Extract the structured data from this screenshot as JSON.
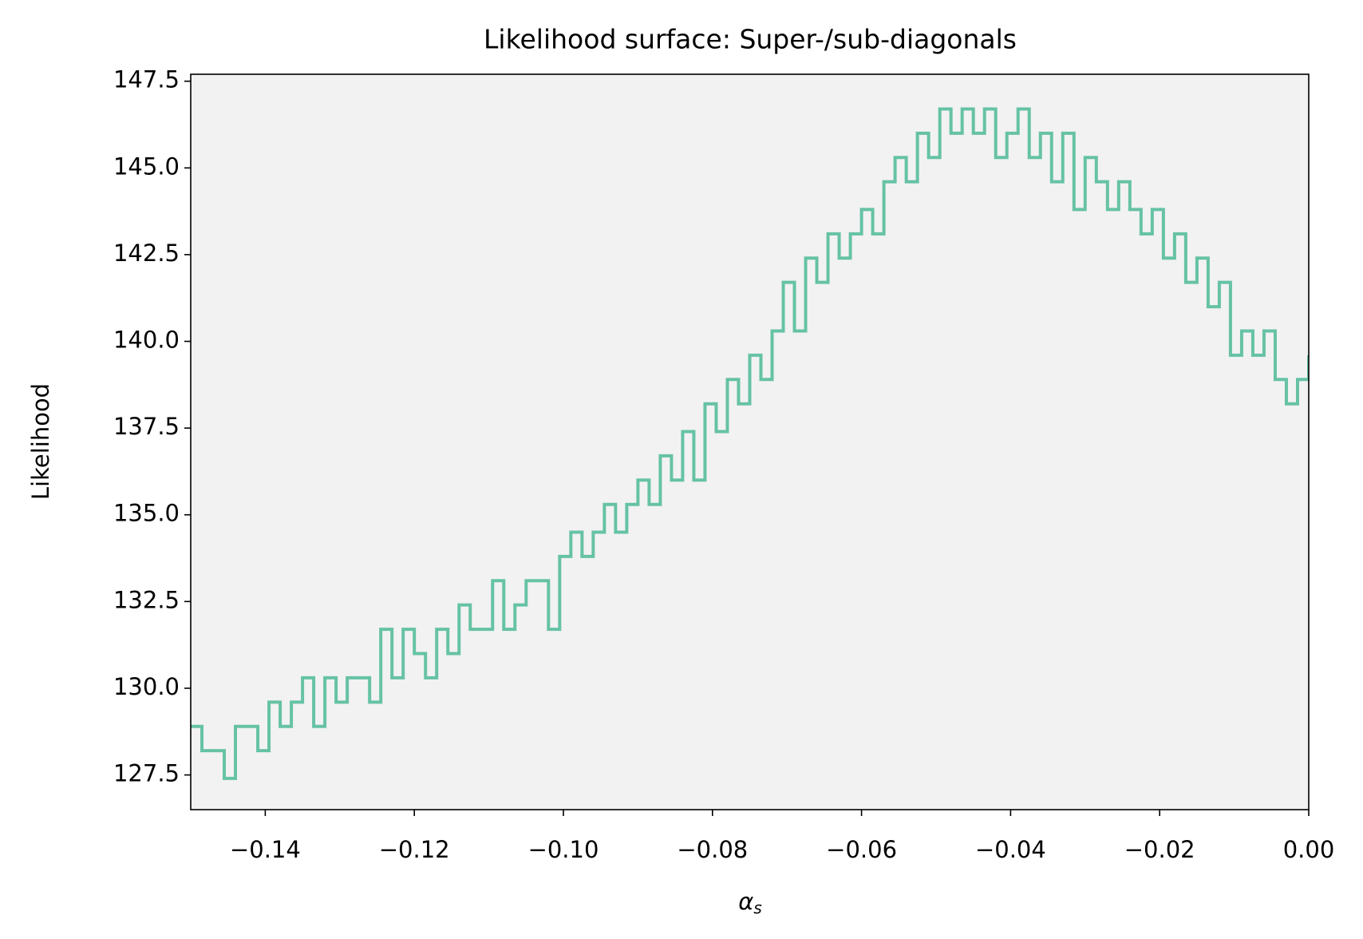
{
  "chart_data": {
    "type": "line",
    "drawstyle": "steps-post",
    "title": "Likelihood surface: Super-/sub-diagonals",
    "x_label": "α",
    "x_label_subscript": "s",
    "y_label": "Likelihood",
    "background": "#f2f2f2",
    "xlim": [
      -0.15,
      0.0
    ],
    "xticks": [
      {
        "value": -0.14,
        "label": "−0.14"
      },
      {
        "value": -0.12,
        "label": "−0.12"
      },
      {
        "value": -0.1,
        "label": "−0.10"
      },
      {
        "value": -0.08,
        "label": "−0.08"
      },
      {
        "value": -0.06,
        "label": "−0.06"
      },
      {
        "value": -0.04,
        "label": "−0.04"
      },
      {
        "value": -0.02,
        "label": "−0.02"
      },
      {
        "value": 0,
        "label": "0.00"
      }
    ],
    "ylim": [
      126.5,
      147.7
    ],
    "yticks": [
      127.5,
      {
        "value": 130,
        "label": "130.0"
      },
      132.5,
      {
        "value": 135,
        "label": "135.0"
      },
      137.5,
      {
        "value": 140,
        "label": "140.0"
      },
      142.5,
      {
        "value": 145,
        "label": "145.0"
      },
      147.5
    ],
    "x": [
      -0.15,
      -0.1485,
      -0.147,
      -0.1455,
      -0.144,
      -0.1425,
      -0.141,
      -0.1395,
      -0.138,
      -0.1365,
      -0.135,
      -0.1335,
      -0.132,
      -0.1305,
      -0.129,
      -0.1275,
      -0.126,
      -0.1245,
      -0.123,
      -0.1215,
      -0.12,
      -0.1185,
      -0.117,
      -0.1155,
      -0.114,
      -0.1125,
      -0.111,
      -0.1095,
      -0.108,
      -0.1065,
      -0.105,
      -0.1035,
      -0.102,
      -0.1005,
      -0.099,
      -0.0975,
      -0.096,
      -0.0945,
      -0.093,
      -0.0915,
      -0.09,
      -0.0885,
      -0.087,
      -0.0855,
      -0.084,
      -0.0825,
      -0.081,
      -0.0795,
      -0.078,
      -0.0765,
      -0.075,
      -0.0735,
      -0.072,
      -0.0705,
      -0.069,
      -0.0675,
      -0.066,
      -0.0645,
      -0.063,
      -0.0615,
      -0.06,
      -0.0585,
      -0.057,
      -0.0555,
      -0.054,
      -0.0525,
      -0.051,
      -0.0495,
      -0.048,
      -0.0465,
      -0.045,
      -0.0435,
      -0.042,
      -0.0405,
      -0.039,
      -0.0375,
      -0.036,
      -0.0345,
      -0.033,
      -0.0315,
      -0.03,
      -0.0285,
      -0.027,
      -0.0255,
      -0.024,
      -0.0225,
      -0.021,
      -0.0195,
      -0.018,
      -0.0165,
      -0.015,
      -0.0135,
      -0.012,
      -0.0105,
      -0.009,
      -0.0075,
      -0.006,
      -0.0045,
      -0.003,
      -0.0015,
      0.0
    ],
    "series": [
      {
        "color": "#66c2a5",
        "values": [
          128.9,
          128.2,
          128.2,
          127.4,
          128.9,
          128.9,
          128.2,
          129.6,
          128.9,
          129.6,
          130.3,
          128.9,
          130.3,
          129.6,
          130.3,
          130.3,
          129.6,
          131.7,
          130.3,
          131.7,
          131.0,
          130.3,
          131.7,
          131.0,
          132.4,
          131.7,
          131.7,
          133.1,
          131.7,
          132.4,
          133.1,
          133.1,
          131.7,
          133.8,
          134.5,
          133.8,
          134.5,
          135.3,
          134.5,
          135.3,
          136.0,
          135.3,
          136.7,
          136.0,
          137.4,
          136.0,
          138.2,
          137.4,
          138.9,
          138.2,
          139.6,
          138.9,
          140.3,
          141.7,
          140.3,
          142.4,
          141.7,
          143.1,
          142.4,
          143.1,
          143.8,
          143.1,
          144.6,
          145.3,
          144.6,
          146.0,
          145.3,
          146.7,
          146.0,
          146.7,
          146.0,
          146.7,
          145.3,
          146.0,
          146.7,
          145.3,
          146.0,
          144.6,
          146.0,
          143.8,
          145.3,
          144.6,
          143.8,
          144.6,
          143.8,
          143.1,
          143.8,
          142.4,
          143.1,
          141.7,
          142.4,
          141.0,
          141.7,
          139.6,
          140.3,
          139.6,
          140.3,
          138.9,
          138.2,
          138.9,
          139.6
        ]
      }
    ]
  }
}
